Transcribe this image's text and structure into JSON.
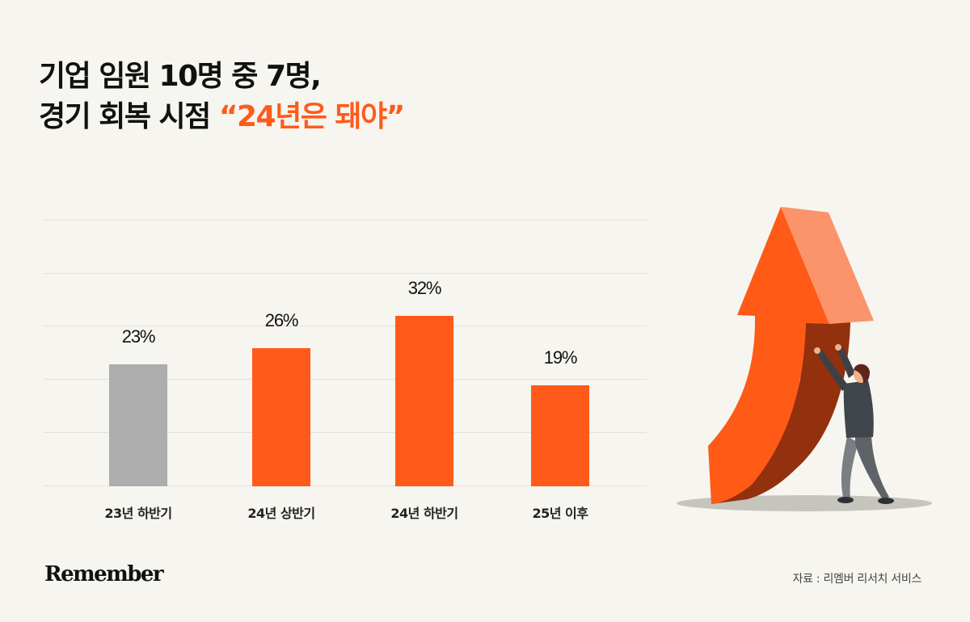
{
  "title": {
    "line1": "기업 임원 10명 중 7명,",
    "line2_prefix": "경기 회복 시점 ",
    "line2_highlight": "“24년은 돼야”"
  },
  "colors": {
    "background": "#f6f5ef",
    "accent": "#ff5a1a",
    "bar_past": "#adadad",
    "bar_future": "#ff5a1a",
    "gridline": "#e3e1db"
  },
  "chart_data": {
    "type": "bar",
    "title": "기업 임원 10명 중 7명, 경기 회복 시점 “24년은 돼야”",
    "xlabel": "",
    "ylabel": "",
    "categories": [
      "23년 하반기",
      "24년 상반기",
      "24년 하반기",
      "25년 이후"
    ],
    "values": [
      23,
      26,
      32,
      19
    ],
    "value_labels": [
      "23%",
      "26%",
      "32%",
      "19%"
    ],
    "bar_colors": [
      "#adadad",
      "#ff5a1a",
      "#ff5a1a",
      "#ff5a1a"
    ],
    "unit": "%",
    "ylim": [
      0,
      50
    ],
    "grid": true,
    "gridline_count": 6,
    "legend": "none"
  },
  "footer": {
    "logo": "Remember",
    "source": "자료 : 리멤버 리서치 서비스"
  },
  "illustration": {
    "description": "man-pushing-rising-arrow"
  }
}
